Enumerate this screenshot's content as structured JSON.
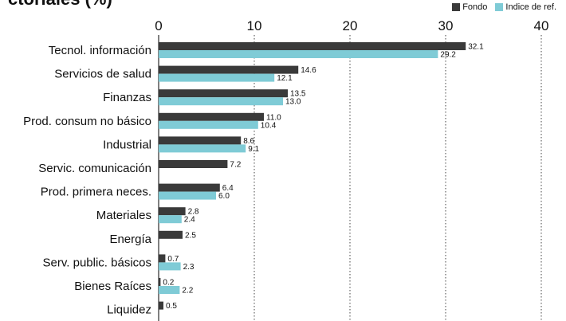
{
  "header": {
    "title": "ctoriales (%)"
  },
  "colors": {
    "fund": "#3a3a3a",
    "benchmark": "#7fcbd6",
    "grid": "#444444",
    "axis": "#000000"
  },
  "chart_data": {
    "type": "bar",
    "orientation": "horizontal",
    "categories": [
      "Tecnol. información",
      "Servicios de salud",
      "Finanzas",
      "Prod. consum no básico",
      "Industrial",
      "Servic. comunicación",
      "Prod. primera neces.",
      "Materiales",
      "Energía",
      "Serv. public. básicos",
      "Bienes Raíces",
      "Liquidez"
    ],
    "series": [
      {
        "name": "Fondo",
        "values": [
          32.1,
          14.6,
          13.5,
          11.0,
          8.6,
          7.2,
          6.4,
          2.8,
          2.5,
          0.7,
          0.2,
          0.5
        ],
        "labels": [
          "32.1",
          "14.6",
          "13.5",
          "11.0",
          "8.6",
          "7.2",
          "6.4",
          "2.8",
          "2.5",
          "0.7",
          "0.2",
          "0.5"
        ]
      },
      {
        "name": "Indice de ref.",
        "values": [
          29.2,
          12.1,
          13.0,
          10.4,
          9.1,
          null,
          6.0,
          2.4,
          null,
          2.3,
          2.2,
          null
        ],
        "labels": [
          "29.2",
          "12.1",
          "13.0",
          "10.4",
          "9.1",
          "",
          "6.0",
          "2.4",
          "",
          "2.3",
          "2.2",
          ""
        ]
      }
    ],
    "xlim": [
      0,
      40
    ],
    "xticks": [
      0,
      10,
      20,
      30,
      40
    ],
    "xtick_labels": [
      "0",
      "10",
      "20",
      "30",
      "40"
    ],
    "grid": true,
    "legend_position": "top-right"
  }
}
